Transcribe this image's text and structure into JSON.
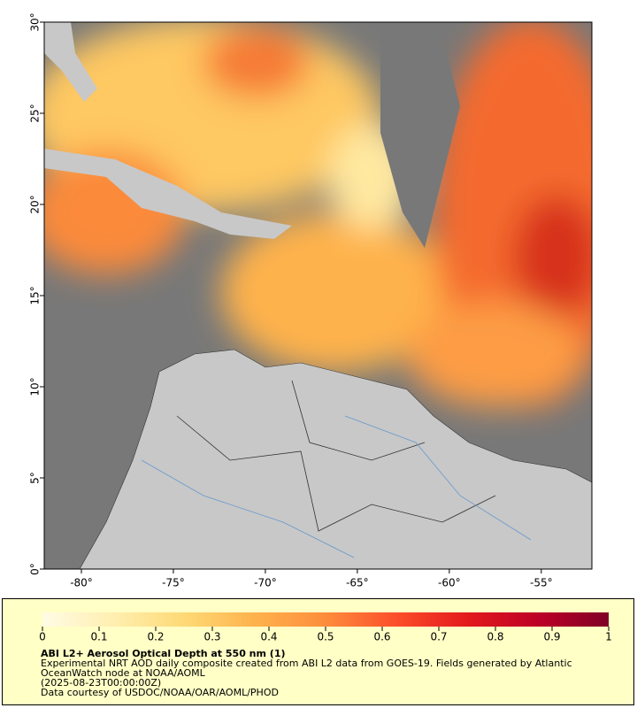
{
  "map": {
    "xlim": [
      -82.02,
      -52.25
    ],
    "ylim": [
      0,
      30
    ],
    "xticks": [
      {
        "value": -80,
        "label": "-80°"
      },
      {
        "value": -75,
        "label": "-75°"
      },
      {
        "value": -70,
        "label": "-70°"
      },
      {
        "value": -65,
        "label": "-65°"
      },
      {
        "value": -60,
        "label": "-60°"
      },
      {
        "value": -55,
        "label": "-55°"
      }
    ],
    "yticks": [
      {
        "value": 0,
        "label": "0°"
      },
      {
        "value": 5,
        "label": "5°"
      },
      {
        "value": 10,
        "label": "10°"
      },
      {
        "value": 15,
        "label": "15°"
      },
      {
        "value": 20,
        "label": "20°"
      },
      {
        "value": 25,
        "label": "25°"
      },
      {
        "value": 30,
        "label": "30°"
      }
    ]
  },
  "colorbar": {
    "lim": [
      0,
      1
    ],
    "ticks": [
      0,
      0.1,
      0.2,
      0.3,
      0.4,
      0.5,
      0.6,
      0.7,
      0.8,
      0.9,
      1
    ],
    "colors": [
      "#fffbe6",
      "#ffefb0",
      "#fed976",
      "#feb24c",
      "#fd8d3c",
      "#fc4e2a",
      "#e31a1c",
      "#bd0026",
      "#800026"
    ]
  },
  "footer": {
    "title": "ABI L2+ Aerosol Optical Depth at 550 nm (1)",
    "lines": [
      "Experimental NRT AOD daily composite created from ABI L2 data from GOES-19. Fields generated by Atlantic OceanWatch node at NOAA/AOML",
      "(2025-08-23T00:00:00Z)",
      "Data courtesy of USDOC/NOAA/OAR/AOML/PHOD"
    ]
  }
}
